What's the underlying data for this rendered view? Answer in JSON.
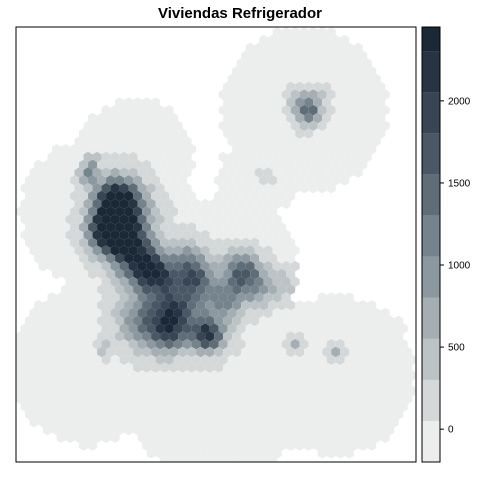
{
  "chart_data": {
    "type": "heatmap",
    "title": "Viviendas Refrigerador",
    "xlabel": "",
    "ylabel": "",
    "grid": false,
    "legend": {
      "placement": "right",
      "range": [
        -200,
        2450
      ],
      "ticks": [
        0,
        500,
        1000,
        1500,
        2000
      ],
      "tick_labels": [
        "0",
        "500",
        "1000",
        "1500",
        "2000"
      ],
      "bins": [
        {
          "min": -200,
          "max": 50,
          "color": "#eceeed"
        },
        {
          "min": 50,
          "max": 300,
          "color": "#d4d8d9"
        },
        {
          "min": 300,
          "max": 550,
          "color": "#bcc3c6"
        },
        {
          "min": 550,
          "max": 800,
          "color": "#a4aeb3"
        },
        {
          "min": 800,
          "max": 1050,
          "color": "#8c98a0"
        },
        {
          "min": 1050,
          "max": 1300,
          "color": "#75838c"
        },
        {
          "min": 1300,
          "max": 1550,
          "color": "#5f6d79"
        },
        {
          "min": 1550,
          "max": 1800,
          "color": "#4a5866"
        },
        {
          "min": 1800,
          "max": 2050,
          "color": "#374554"
        },
        {
          "min": 2050,
          "max": 2300,
          "color": "#263443"
        },
        {
          "min": 2300,
          "max": 2450,
          "color": "#1b2836"
        }
      ]
    },
    "map": {
      "background_color": "#eceeed",
      "cell_shape": "hexagon",
      "hotspots": [
        {
          "u": 0.25,
          "v": 0.4,
          "value": 2300,
          "spread": 0.035
        },
        {
          "u": 0.26,
          "v": 0.48,
          "value": 2100,
          "spread": 0.035
        },
        {
          "u": 0.22,
          "v": 0.47,
          "value": 1600,
          "spread": 0.03
        },
        {
          "u": 0.3,
          "v": 0.53,
          "value": 1500,
          "spread": 0.04
        },
        {
          "u": 0.27,
          "v": 0.43,
          "value": 1200,
          "spread": 0.05
        },
        {
          "u": 0.33,
          "v": 0.56,
          "value": 1200,
          "spread": 0.03
        },
        {
          "u": 0.37,
          "v": 0.58,
          "value": 1300,
          "spread": 0.035
        },
        {
          "u": 0.45,
          "v": 0.58,
          "value": 1500,
          "spread": 0.03
        },
        {
          "u": 0.4,
          "v": 0.65,
          "value": 1100,
          "spread": 0.03
        },
        {
          "u": 0.32,
          "v": 0.67,
          "value": 1200,
          "spread": 0.045
        },
        {
          "u": 0.38,
          "v": 0.7,
          "value": 1400,
          "spread": 0.035
        },
        {
          "u": 0.48,
          "v": 0.71,
          "value": 1700,
          "spread": 0.025
        },
        {
          "u": 0.46,
          "v": 0.67,
          "value": 800,
          "spread": 0.05
        },
        {
          "u": 0.43,
          "v": 0.53,
          "value": 800,
          "spread": 0.03
        },
        {
          "u": 0.53,
          "v": 0.62,
          "value": 1000,
          "spread": 0.03
        },
        {
          "u": 0.58,
          "v": 0.57,
          "value": 1200,
          "spread": 0.03
        },
        {
          "u": 0.55,
          "v": 0.55,
          "value": 700,
          "spread": 0.03
        },
        {
          "u": 0.61,
          "v": 0.61,
          "value": 600,
          "spread": 0.025
        },
        {
          "u": 0.67,
          "v": 0.59,
          "value": 500,
          "spread": 0.025
        },
        {
          "u": 0.73,
          "v": 0.2,
          "value": 1300,
          "spread": 0.02
        },
        {
          "u": 0.71,
          "v": 0.17,
          "value": 600,
          "spread": 0.02
        },
        {
          "u": 0.75,
          "v": 0.17,
          "value": 500,
          "spread": 0.02
        },
        {
          "u": 0.18,
          "v": 0.34,
          "value": 1100,
          "spread": 0.015
        },
        {
          "u": 0.19,
          "v": 0.31,
          "value": 800,
          "spread": 0.012
        },
        {
          "u": 0.7,
          "v": 0.73,
          "value": 700,
          "spread": 0.012
        },
        {
          "u": 0.8,
          "v": 0.75,
          "value": 600,
          "spread": 0.012
        },
        {
          "u": 0.22,
          "v": 0.74,
          "value": 500,
          "spread": 0.012
        },
        {
          "u": 0.62,
          "v": 0.35,
          "value": 300,
          "spread": 0.012
        }
      ]
    }
  }
}
